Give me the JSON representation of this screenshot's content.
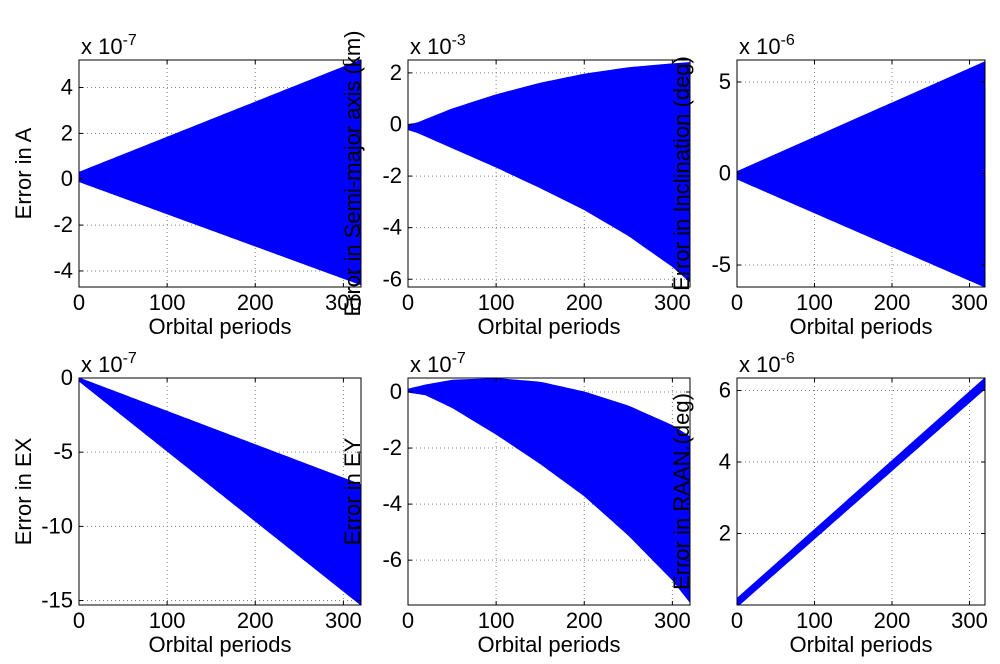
{
  "chart_data": [
    {
      "type": "area",
      "xlabel": "Orbital periods",
      "ylabel": "Error in A",
      "exponent_label": {
        "prefix": "x 10",
        "power": "-7"
      },
      "xlim": [
        0,
        320
      ],
      "ylim": [
        -4.7,
        5.2
      ],
      "xticks": [
        0,
        100,
        200,
        300
      ],
      "yticks": [
        -4,
        -2,
        0,
        2,
        4
      ],
      "xtick_labels": [
        "0",
        "100",
        "200",
        "300"
      ],
      "ytick_labels": [
        "-4",
        "-2",
        "0",
        "2",
        "4"
      ],
      "grid": true,
      "color": "#0000ff",
      "upper": {
        "x": [
          0,
          320
        ],
        "y": [
          0.3,
          5.2
        ]
      },
      "lower": {
        "x": [
          0,
          320
        ],
        "y": [
          -0.1,
          -4.6
        ]
      }
    },
    {
      "type": "area",
      "xlabel": "Orbital periods",
      "ylabel": "Error in Semi-major axis (km)",
      "exponent_label": {
        "prefix": "x 10",
        "power": "-3"
      },
      "xlim": [
        0,
        320
      ],
      "ylim": [
        -6.3,
        2.5
      ],
      "xticks": [
        0,
        100,
        200,
        300
      ],
      "yticks": [
        -6,
        -4,
        -2,
        0,
        2
      ],
      "xtick_labels": [
        "0",
        "100",
        "200",
        "300"
      ],
      "ytick_labels": [
        "-6",
        "-4",
        "-2",
        "0",
        "2"
      ],
      "grid": true,
      "color": "#0000ff",
      "upper": {
        "x": [
          0,
          10,
          50,
          100,
          150,
          200,
          250,
          300,
          320
        ],
        "y": [
          0.0,
          0.05,
          0.6,
          1.15,
          1.6,
          1.95,
          2.2,
          2.35,
          2.4
        ]
      },
      "lower": {
        "x": [
          0,
          10,
          50,
          100,
          150,
          200,
          250,
          300,
          320
        ],
        "y": [
          -0.2,
          -0.3,
          -0.9,
          -1.65,
          -2.45,
          -3.3,
          -4.3,
          -5.5,
          -6.1
        ]
      }
    },
    {
      "type": "area",
      "xlabel": "Orbital periods",
      "ylabel": "Error in Inclination (deg)",
      "exponent_label": {
        "prefix": "x 10",
        "power": "-6"
      },
      "xlim": [
        0,
        320
      ],
      "ylim": [
        -6.2,
        6.2
      ],
      "xticks": [
        0,
        100,
        200,
        300
      ],
      "yticks": [
        -5,
        0,
        5
      ],
      "xtick_labels": [
        "0",
        "100",
        "200",
        "300"
      ],
      "ytick_labels": [
        "-5",
        "0",
        "5"
      ],
      "grid": true,
      "color": "#0000ff",
      "upper": {
        "x": [
          0,
          320
        ],
        "y": [
          0.1,
          6.1
        ]
      },
      "lower": {
        "x": [
          0,
          320
        ],
        "y": [
          -0.3,
          -6.2
        ]
      }
    },
    {
      "type": "area",
      "xlabel": "Orbital periods",
      "ylabel": "Error in EX",
      "exponent_label": {
        "prefix": "x 10",
        "power": "-7"
      },
      "xlim": [
        0,
        320
      ],
      "ylim": [
        -15.3,
        0
      ],
      "xticks": [
        0,
        100,
        200,
        300
      ],
      "yticks": [
        -15,
        -10,
        -5,
        0
      ],
      "xtick_labels": [
        "0",
        "100",
        "200",
        "300"
      ],
      "ytick_labels": [
        "-15",
        "-10",
        "-5",
        "0"
      ],
      "grid": true,
      "color": "#0000ff",
      "upper": {
        "x": [
          0,
          320
        ],
        "y": [
          0.0,
          -7.2
        ]
      },
      "lower": {
        "x": [
          0,
          320
        ],
        "y": [
          -0.2,
          -15.3
        ]
      }
    },
    {
      "type": "area",
      "xlabel": "Orbital periods",
      "ylabel": "Error in EY",
      "exponent_label": {
        "prefix": "x 10",
        "power": "-7"
      },
      "xlim": [
        0,
        320
      ],
      "ylim": [
        -7.6,
        0.5
      ],
      "xticks": [
        0,
        100,
        200,
        300
      ],
      "yticks": [
        -6,
        -4,
        -2,
        0
      ],
      "xtick_labels": [
        "0",
        "100",
        "200",
        "300"
      ],
      "ytick_labels": [
        "-6",
        "-4",
        "-2",
        "0"
      ],
      "grid": true,
      "color": "#0000ff",
      "upper": {
        "x": [
          0,
          20,
          50,
          100,
          150,
          200,
          250,
          300,
          320
        ],
        "y": [
          0.1,
          0.25,
          0.42,
          0.48,
          0.35,
          0.0,
          -0.5,
          -1.2,
          -1.6
        ]
      },
      "lower": {
        "x": [
          0,
          20,
          50,
          100,
          150,
          200,
          250,
          300,
          320
        ],
        "y": [
          0.0,
          -0.1,
          -0.55,
          -1.5,
          -2.55,
          -3.7,
          -5.1,
          -6.7,
          -7.5
        ]
      }
    },
    {
      "type": "area",
      "xlabel": "Orbital periods",
      "ylabel": "Error in RAAN (deg)",
      "exponent_label": {
        "prefix": "x 10",
        "power": "-6"
      },
      "xlim": [
        0,
        320
      ],
      "ylim": [
        0,
        6.35
      ],
      "xticks": [
        0,
        100,
        200,
        300
      ],
      "yticks": [
        2,
        4,
        6
      ],
      "xtick_labels": [
        "0",
        "100",
        "200",
        "300"
      ],
      "ytick_labels": [
        "2",
        "4",
        "6"
      ],
      "grid": true,
      "color": "#0000ff",
      "upper": {
        "x": [
          0,
          320
        ],
        "y": [
          0.18,
          6.35
        ]
      },
      "lower": {
        "x": [
          0,
          320
        ],
        "y": [
          -0.05,
          6.05
        ]
      }
    }
  ]
}
